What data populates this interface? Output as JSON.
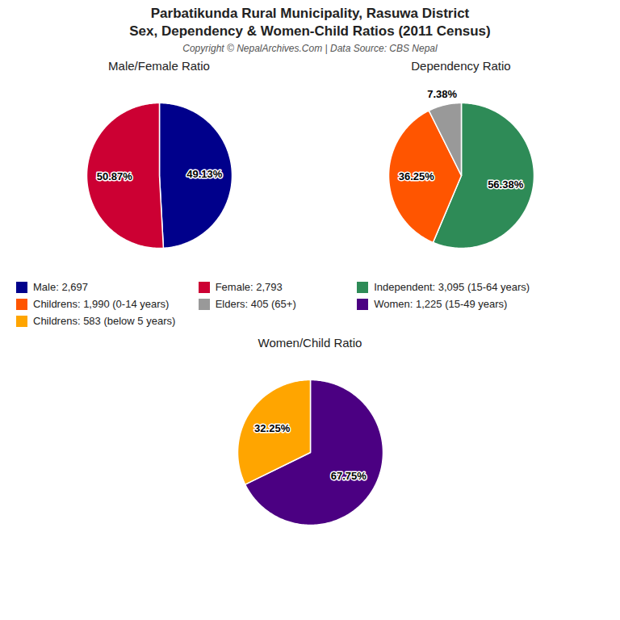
{
  "title": "Parbatikunda Rural Municipality, Rasuwa District",
  "subtitle": "Sex, Dependency & Women-Child Ratios (2011 Census)",
  "annotations": [
    "Copyright © NepalArchives.Com | Data Source: CBS Nepal"
  ],
  "chart_data": [
    {
      "type": "pie",
      "title": "Male/Female Ratio",
      "categories": [
        "Male: 2,697",
        "Female: 2,793"
      ],
      "values": [
        49.13,
        50.87
      ],
      "value_labels": [
        "49.13%",
        "50.87%"
      ],
      "colors": [
        "#00008B",
        "#CC0033"
      ],
      "data_labels": true
    },
    {
      "type": "pie",
      "title": "Dependency Ratio",
      "categories": [
        "Independent: 3,095 (15-64 years)",
        "Childrens: 1,990 (0-14 years)",
        "Elders: 405 (65+)"
      ],
      "values": [
        56.38,
        36.25,
        7.38
      ],
      "value_labels": [
        "56.38%",
        "36.25%",
        "7.38%"
      ],
      "colors": [
        "#2E8B57",
        "#FF5500",
        "#999999"
      ],
      "data_labels": true
    },
    {
      "type": "pie",
      "title": "Women/Child Ratio",
      "categories": [
        "Women: 1,225 (15-49 years)",
        "Childrens: 583 (below 5 years)"
      ],
      "values": [
        67.75,
        32.25
      ],
      "value_labels": [
        "67.75%",
        "32.25%"
      ],
      "colors": [
        "#4B0082",
        "#FFA500"
      ],
      "data_labels": true
    }
  ]
}
